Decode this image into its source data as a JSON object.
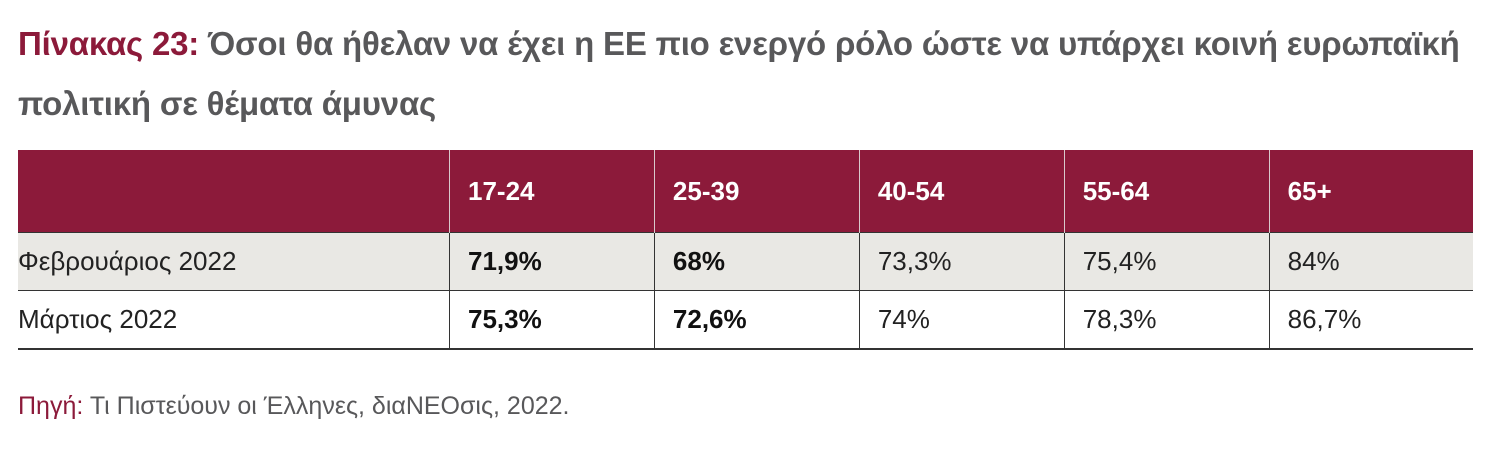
{
  "title": {
    "label": "Πίνακας 23:",
    "text": "Όσοι θα ήθελαν να έχει η ΕΕ πιο ενεργό ρόλο ώστε να υπάρχει κοινή ευρωπαϊκή πολιτική σε θέματα άμυνας"
  },
  "table": {
    "headers": [
      "",
      "17-24",
      "25-39",
      "40-54",
      "55-64",
      "65+"
    ],
    "rows": [
      {
        "label": "Φεβρουάριος 2022",
        "values": [
          "71,9%",
          "68%",
          "73,3%",
          "75,4%",
          "84%"
        ]
      },
      {
        "label": "Μάρτιος 2022",
        "values": [
          "75,3%",
          "72,6%",
          "74%",
          "78,3%",
          "86,7%"
        ]
      }
    ]
  },
  "source": {
    "label": "Πηγή:",
    "text": "Τι Πιστεύουν οι Έλληνες, διαΝΕΟσις, 2022."
  },
  "colors": {
    "accent": "#8c1a3a",
    "row_shade": "#e9e8e4"
  }
}
